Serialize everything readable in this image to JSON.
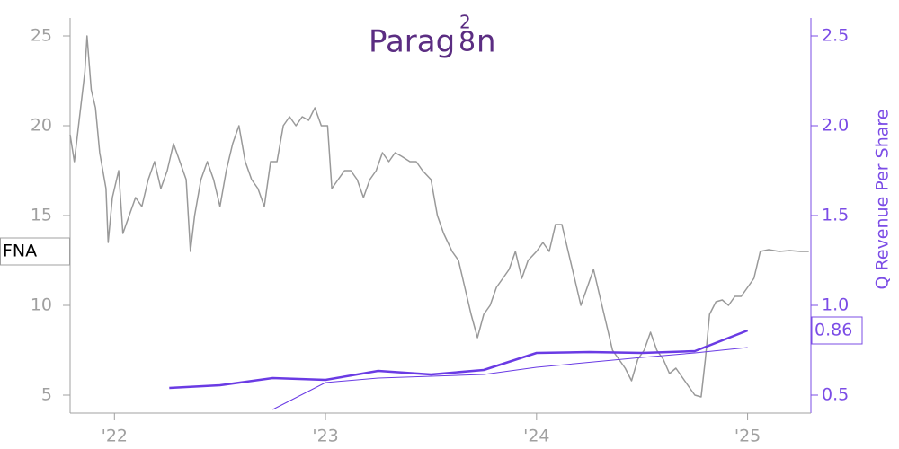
{
  "chart_data": {
    "type": "line",
    "logo": {
      "left": "Parag",
      "top": "2",
      "mid": "8",
      "right": "n"
    },
    "ticker_label": "FNA",
    "y2label": "Q Revenue Per Share",
    "xlim": [
      2021.79,
      2025.3
    ],
    "xticks": [
      {
        "value": 2022,
        "label": "'22"
      },
      {
        "value": 2023,
        "label": "'23"
      },
      {
        "value": 2024,
        "label": "'24"
      },
      {
        "value": 2025,
        "label": "'25"
      }
    ],
    "ylim": [
      4,
      26
    ],
    "yticks": [
      5,
      10,
      15,
      20,
      25
    ],
    "y2lim": [
      0.4,
      2.6
    ],
    "y2ticks": [
      0.5,
      {
        "value": 1,
        "label": "1.0"
      },
      1.5,
      {
        "value": 2,
        "label": "2.0"
      },
      2.5
    ],
    "series": [
      {
        "color": "#999999",
        "width": 1.5,
        "axis": "y",
        "x": [
          2021.79,
          2021.81,
          2021.84,
          2021.86,
          2021.87,
          2021.89,
          2021.91,
          2021.93,
          2021.96,
          2021.97,
          2021.99,
          2022.02,
          2022.04,
          2022.07,
          2022.1,
          2022.13,
          2022.16,
          2022.19,
          2022.22,
          2022.25,
          2022.28,
          2022.31,
          2022.34,
          2022.36,
          2022.38,
          2022.41,
          2022.44,
          2022.47,
          2022.5,
          2022.53,
          2022.56,
          2022.59,
          2022.62,
          2022.65,
          2022.68,
          2022.71,
          2022.74,
          2022.77,
          2022.8,
          2022.83,
          2022.86,
          2022.89,
          2022.92,
          2022.95,
          2022.98,
          2023.01,
          2023.03,
          2023.06,
          2023.09,
          2023.12,
          2023.15,
          2023.18,
          2023.21,
          2023.24,
          2023.27,
          2023.3,
          2023.33,
          2023.36,
          2023.4,
          2023.43,
          2023.46,
          2023.5,
          2023.53,
          2023.56,
          2023.6,
          2023.63,
          2023.66,
          2023.69,
          2023.72,
          2023.75,
          2023.78,
          2023.81,
          2023.84,
          2023.87,
          2023.9,
          2023.93,
          2023.96,
          2024.0,
          2024.03,
          2024.06,
          2024.09,
          2024.12,
          2024.15,
          2024.18,
          2024.21,
          2024.24,
          2024.27,
          2024.3,
          2024.33,
          2024.36,
          2024.39,
          2024.42,
          2024.45,
          2024.48,
          2024.51,
          2024.54,
          2024.57,
          2024.6,
          2024.63,
          2024.66,
          2024.69,
          2024.72,
          2024.75,
          2024.78,
          2024.8,
          2024.82,
          2024.85,
          2024.88,
          2024.91,
          2024.94,
          2024.97,
          2025.0,
          2025.03,
          2025.06,
          2025.1,
          2025.15,
          2025.2,
          2025.25,
          2025.29
        ],
        "values": [
          19.5,
          18,
          21,
          23,
          25,
          22,
          21,
          18.5,
          16.5,
          13.5,
          16,
          17.5,
          14,
          15,
          16,
          15.5,
          17,
          18,
          16.5,
          17.5,
          19,
          18,
          17,
          13,
          15,
          17,
          18,
          17,
          15.5,
          17.5,
          19,
          20,
          18,
          17,
          16.5,
          15.5,
          18,
          18,
          20,
          20.5,
          20,
          20.5,
          20.3,
          21,
          20,
          20,
          16.5,
          17,
          17.5,
          17.5,
          17,
          16,
          17,
          17.5,
          18.5,
          18,
          18.5,
          18.3,
          18,
          18,
          17.5,
          17,
          15,
          14,
          13,
          12.5,
          11,
          9.5,
          8.2,
          9.5,
          10,
          11,
          11.5,
          12,
          13,
          11.5,
          12.5,
          13,
          13.5,
          13,
          14.5,
          14.5,
          13,
          11.5,
          10,
          11,
          12,
          10.5,
          9,
          7.5,
          7,
          6.5,
          5.8,
          7,
          7.5,
          8.5,
          7.5,
          7,
          6.2,
          6.5,
          6,
          5.5,
          5,
          4.9,
          7,
          9.5,
          10.2,
          10.3,
          10,
          10.5,
          10.5,
          11,
          11.5,
          13,
          13.1,
          13,
          13.05,
          13,
          13
        ]
      },
      {
        "color": "#6a3be4",
        "width": 2.5,
        "axis": "y2",
        "x": [
          2022.26,
          2022.5,
          2022.75,
          2023.0,
          2023.25,
          2023.5,
          2023.75,
          2024.0,
          2024.25,
          2024.5,
          2024.75,
          2025.0
        ],
        "values": [
          0.54,
          0.555,
          0.595,
          0.585,
          0.635,
          0.615,
          0.64,
          0.735,
          0.74,
          0.735,
          0.745,
          0.86
        ]
      },
      {
        "color": "#6a3be4",
        "width": 1,
        "axis": "y2",
        "x": [
          2022.75,
          2023.0,
          2023.25,
          2023.75,
          2024.0,
          2024.5,
          2024.75,
          2025.0
        ],
        "values": [
          0.42,
          0.57,
          0.595,
          0.615,
          0.655,
          0.71,
          0.735,
          0.765
        ]
      }
    ]
  }
}
